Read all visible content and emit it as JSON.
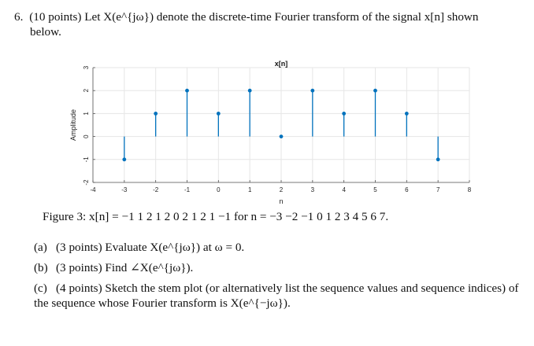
{
  "problem": {
    "number": "6.",
    "line1": "(10 points) Let X(e^{jω}) denote the discrete-time Fourier transform of the signal x[n] shown",
    "line1_display": "(10 points) Let X(e jω) denote the discrete-time Fourier transform of the signal x[n] shown",
    "line2": "below."
  },
  "chart_data": {
    "type": "stem",
    "title": "x[n]",
    "xlabel": "n",
    "ylabel": "Amplitude",
    "x": [
      -3,
      -2,
      -1,
      0,
      1,
      2,
      3,
      4,
      5,
      6,
      7
    ],
    "y": [
      -1,
      1,
      2,
      1,
      2,
      0,
      2,
      1,
      2,
      1,
      -1
    ],
    "xlim": [
      -4,
      8
    ],
    "ylim": [
      -2,
      3
    ],
    "xticks": [
      "-4",
      "-3",
      "-2",
      "-1",
      "0",
      "1",
      "2",
      "3",
      "4",
      "5",
      "6",
      "7",
      "8"
    ],
    "yticks": [
      "-2",
      "-1",
      "0",
      "1",
      "2",
      "3"
    ],
    "grid": true,
    "color": "#0072BD"
  },
  "caption": "Figure 3: x[n] = −1 1 2 1 2 0 2 1 2 1 −1 for n = −3 −2 −1 0 1 2 3 4 5 6 7.",
  "parts": [
    {
      "label": "(a)",
      "text": "(3 points) Evaluate X(e^{jω}) at ω = 0."
    },
    {
      "label": "(b)",
      "text": "(3 points) Find ∠X(e^{jω})."
    },
    {
      "label": "(c)",
      "text": "(4 points) Sketch the stem plot (or alternatively list the sequence values and sequence indices) of the sequence whose Fourier transform is X(e^{−jω})."
    }
  ]
}
